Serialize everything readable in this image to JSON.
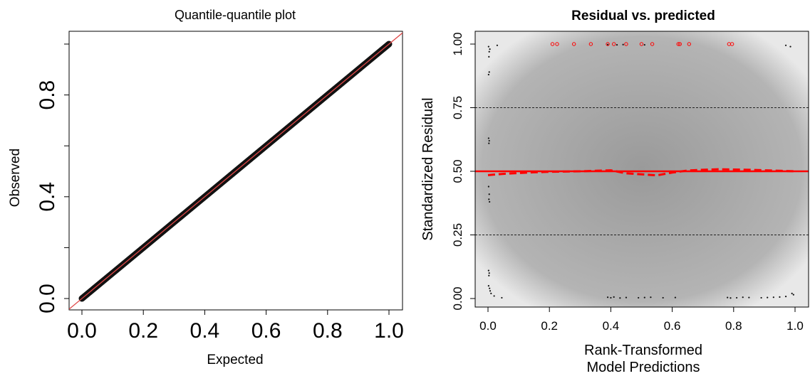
{
  "colors": {
    "reference_line": "#e04848",
    "points": "#111111",
    "outlier": "#ff0000",
    "loess": "#ff0000"
  },
  "chart_data": [
    {
      "type": "scatter",
      "title": "Quantile-quantile plot",
      "xlabel": "Expected",
      "ylabel": "Observed",
      "xlim": [
        0,
        1
      ],
      "ylim": [
        0,
        1
      ],
      "x_ticks": [
        "0.0",
        "0.2",
        "0.4",
        "0.6",
        "0.8",
        "1.0"
      ],
      "y_ticks": [
        "0.0",
        "0.4",
        "0.8"
      ],
      "grid": false,
      "series": [
        {
          "x": [
            0.0,
            0.1,
            0.2,
            0.3,
            0.4,
            0.5,
            0.6,
            0.7,
            0.8,
            0.9,
            1.0
          ],
          "y": [
            0.0,
            0.1,
            0.2,
            0.3,
            0.4,
            0.5,
            0.6,
            0.7,
            0.8,
            0.9,
            1.0
          ]
        }
      ],
      "reference_line": {
        "slope": 1,
        "intercept": 0
      }
    },
    {
      "type": "scatter",
      "title": "Residual vs. predicted",
      "xlabel": "Rank-Transformed\nModel Predictions",
      "xlabel_lines": [
        "Rank-Transformed",
        "Model Predictions"
      ],
      "ylabel": "Standardized Residual",
      "xlim": [
        0,
        1
      ],
      "ylim": [
        0,
        1
      ],
      "x_ticks": [
        "0.0",
        "0.2",
        "0.4",
        "0.6",
        "0.8",
        "1.0"
      ],
      "y_ticks": [
        "0.00",
        "0.25",
        "0.50",
        "0.75",
        "1.00"
      ],
      "hlines_dashed": [
        0.25,
        0.75
      ],
      "hline_solid": 0.5,
      "points": [
        {
          "x": 0.002,
          "y": 0.99
        },
        {
          "x": 0.004,
          "y": 0.97
        },
        {
          "x": 0.003,
          "y": 0.95
        },
        {
          "x": 0.006,
          "y": 0.98
        },
        {
          "x": 0.03,
          "y": 0.995
        },
        {
          "x": 0.002,
          "y": 0.88
        },
        {
          "x": 0.004,
          "y": 0.89
        },
        {
          "x": 0.002,
          "y": 0.63
        },
        {
          "x": 0.004,
          "y": 0.62
        },
        {
          "x": 0.003,
          "y": 0.61
        },
        {
          "x": 0.002,
          "y": 0.44
        },
        {
          "x": 0.004,
          "y": 0.41
        },
        {
          "x": 0.003,
          "y": 0.39
        },
        {
          "x": 0.005,
          "y": 0.38
        },
        {
          "x": 0.002,
          "y": 0.11
        },
        {
          "x": 0.004,
          "y": 0.1
        },
        {
          "x": 0.003,
          "y": 0.09
        },
        {
          "x": 0.002,
          "y": 0.05
        },
        {
          "x": 0.005,
          "y": 0.04
        },
        {
          "x": 0.007,
          "y": 0.03
        },
        {
          "x": 0.01,
          "y": 0.02
        },
        {
          "x": 0.02,
          "y": 0.01
        },
        {
          "x": 0.045,
          "y": 0.003
        },
        {
          "x": 0.39,
          "y": 0.005
        },
        {
          "x": 0.4,
          "y": 0.003
        },
        {
          "x": 0.41,
          "y": 0.006
        },
        {
          "x": 0.43,
          "y": 0.002
        },
        {
          "x": 0.45,
          "y": 0.004
        },
        {
          "x": 0.49,
          "y": 0.003
        },
        {
          "x": 0.51,
          "y": 0.004
        },
        {
          "x": 0.53,
          "y": 0.005
        },
        {
          "x": 0.57,
          "y": 0.003
        },
        {
          "x": 0.61,
          "y": 0.004
        },
        {
          "x": 0.78,
          "y": 0.004
        },
        {
          "x": 0.79,
          "y": 0.002
        },
        {
          "x": 0.81,
          "y": 0.003
        },
        {
          "x": 0.83,
          "y": 0.005
        },
        {
          "x": 0.85,
          "y": 0.004
        },
        {
          "x": 0.89,
          "y": 0.003
        },
        {
          "x": 0.91,
          "y": 0.004
        },
        {
          "x": 0.93,
          "y": 0.005
        },
        {
          "x": 0.95,
          "y": 0.006
        },
        {
          "x": 0.97,
          "y": 0.008
        },
        {
          "x": 0.99,
          "y": 0.02
        },
        {
          "x": 0.995,
          "y": 0.015
        },
        {
          "x": 0.39,
          "y": 0.998
        },
        {
          "x": 0.42,
          "y": 0.997
        },
        {
          "x": 0.44,
          "y": 0.998
        },
        {
          "x": 0.51,
          "y": 0.997
        },
        {
          "x": 0.97,
          "y": 0.995
        },
        {
          "x": 0.985,
          "y": 0.99
        }
      ],
      "outliers": [
        {
          "x": 0.21,
          "y": 1.0
        },
        {
          "x": 0.225,
          "y": 1.0
        },
        {
          "x": 0.28,
          "y": 1.0
        },
        {
          "x": 0.335,
          "y": 1.0
        },
        {
          "x": 0.39,
          "y": 1.0
        },
        {
          "x": 0.41,
          "y": 1.0
        },
        {
          "x": 0.45,
          "y": 1.0
        },
        {
          "x": 0.5,
          "y": 1.0
        },
        {
          "x": 0.535,
          "y": 1.0
        },
        {
          "x": 0.62,
          "y": 1.0
        },
        {
          "x": 0.625,
          "y": 1.0
        },
        {
          "x": 0.655,
          "y": 1.0
        },
        {
          "x": 0.785,
          "y": 1.0
        },
        {
          "x": 0.795,
          "y": 1.0
        }
      ],
      "quantile_curve": {
        "x": [
          0.0,
          0.05,
          0.1,
          0.15,
          0.2,
          0.25,
          0.3,
          0.35,
          0.4,
          0.45,
          0.5,
          0.55,
          0.6,
          0.65,
          0.7,
          0.75,
          0.8,
          0.85,
          0.9,
          0.95,
          1.0
        ],
        "y": [
          0.485,
          0.49,
          0.493,
          0.496,
          0.498,
          0.499,
          0.5,
          0.502,
          0.504,
          0.492,
          0.488,
          0.484,
          0.495,
          0.503,
          0.506,
          0.508,
          0.507,
          0.506,
          0.504,
          0.502,
          0.5
        ]
      }
    }
  ]
}
